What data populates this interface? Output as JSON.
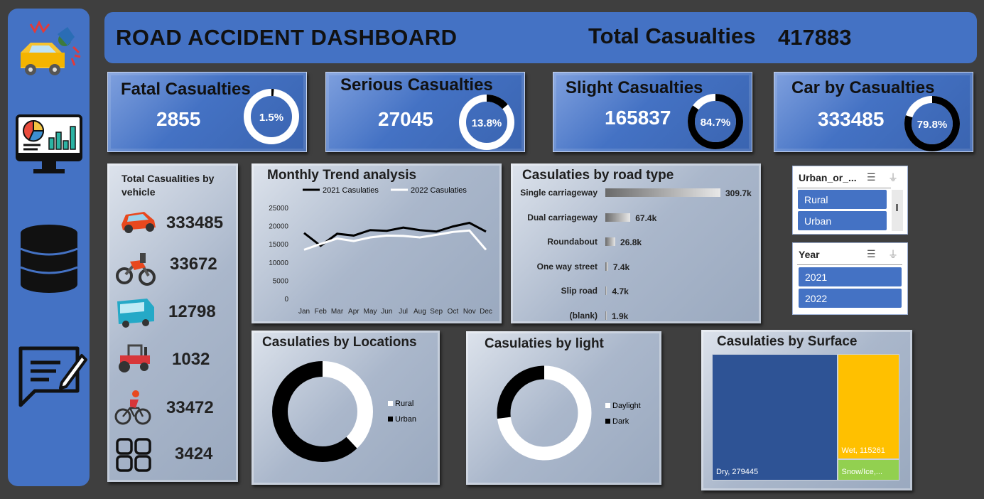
{
  "header": {
    "title": "ROAD ACCIDENT DASHBOARD",
    "total_label": "Total Casualties",
    "total_value": "417883"
  },
  "sidebar": {
    "icons": [
      "crash-icon",
      "analytics-monitor-icon",
      "database-icon",
      "chat-note-icon"
    ]
  },
  "kpis": [
    {
      "title": "Fatal Casualties",
      "value": "2855",
      "pct_label": "1.5%",
      "pct": 1.5
    },
    {
      "title": "Serious Casualties",
      "value": "27045",
      "pct_label": "13.8%",
      "pct": 13.8
    },
    {
      "title": "Slight Casualties",
      "value": "165837",
      "pct_label": "84.7%",
      "pct": 84.7
    },
    {
      "title": "Car by Casualties",
      "value": "333485",
      "pct_label": "79.8%",
      "pct": 79.8
    }
  ],
  "vehicles": {
    "title": "Total Casualities by vehicle",
    "items": [
      {
        "icon": "car-icon",
        "value": "333485"
      },
      {
        "icon": "motorcycle-icon",
        "value": "33672"
      },
      {
        "icon": "bus-icon",
        "value": "12798"
      },
      {
        "icon": "tractor-icon",
        "value": "1032"
      },
      {
        "icon": "bicycle-icon",
        "value": "33472"
      },
      {
        "icon": "other-grid-icon",
        "value": "3424"
      }
    ]
  },
  "slicers": {
    "urban": {
      "title": "Urban_or_...",
      "options": [
        "Rural",
        "Urban"
      ]
    },
    "year": {
      "title": "Year",
      "options": [
        "2021",
        "2022"
      ]
    }
  },
  "chart_data": [
    {
      "type": "line",
      "title": "Monthly Trend analysis",
      "categories": [
        "Jan",
        "Feb",
        "Mar",
        "Apr",
        "May",
        "Jun",
        "Jul",
        "Aug",
        "Sep",
        "Oct",
        "Nov",
        "Dec"
      ],
      "series": [
        {
          "name": "2021 Casulaties",
          "color": "#000000",
          "values": [
            18000,
            14500,
            17800,
            17300,
            18800,
            18600,
            19500,
            18800,
            18400,
            19800,
            20800,
            18400
          ]
        },
        {
          "name": "2022 Casulaties",
          "color": "#ffffff",
          "values": [
            13400,
            15000,
            16500,
            15800,
            16800,
            17300,
            17200,
            16800,
            17500,
            18300,
            18700,
            13400
          ]
        }
      ],
      "yticks": [
        "25000",
        "20000",
        "15000",
        "10000",
        "5000",
        "0"
      ],
      "ylim": [
        0,
        25000
      ]
    },
    {
      "type": "bar",
      "title": "Casulaties by road type",
      "categories": [
        "Single carriageway",
        "Dual carriageway",
        "Roundabout",
        "One way street",
        "Slip road",
        "(blank)"
      ],
      "values": [
        309.7,
        67.4,
        26.8,
        7.4,
        4.7,
        1.9
      ],
      "labels": [
        "309.7k",
        "67.4k",
        "26.8k",
        "7.4k",
        "4.7k",
        "1.9k"
      ],
      "unit": "k"
    },
    {
      "type": "pie",
      "title": "Casulaties by Locations",
      "categories": [
        "Rural",
        "Urban"
      ],
      "values": [
        38,
        62
      ],
      "colors": [
        "#ffffff",
        "#000000"
      ]
    },
    {
      "type": "pie",
      "title": "Casulaties by light",
      "categories": [
        "Daylight",
        "Dark"
      ],
      "values": [
        73,
        27
      ],
      "colors": [
        "#ffffff",
        "#000000"
      ]
    },
    {
      "type": "heatmap",
      "title": "Casulaties by Surface",
      "categories": [
        "Dry",
        "Wet",
        "Snow/Ice,..."
      ],
      "values": [
        279445,
        115261,
        23177
      ],
      "labels": [
        "Dry, 279445",
        "Wet, 115261",
        "Snow/Ice,..."
      ],
      "colors": [
        "#2e5395",
        "#ffc000",
        "#92d050"
      ]
    }
  ]
}
